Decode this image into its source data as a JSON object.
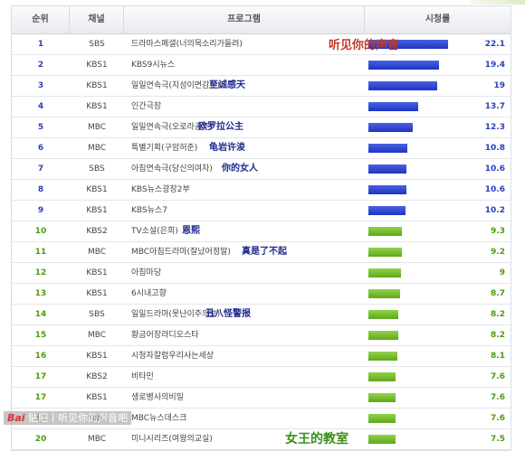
{
  "header": {
    "rank": "순위",
    "channel": "채널",
    "program": "프로그램",
    "rating": "시청률"
  },
  "chart_data": {
    "type": "bar",
    "orientation": "horizontal",
    "xlim": [
      0,
      25
    ],
    "rows": [
      {
        "rank": "1",
        "channel": "SBS",
        "program": "드라마스페셜(너의목소리가들려)",
        "value": 22.1,
        "color": "blue",
        "note": "听见你的声音",
        "note_style": "red"
      },
      {
        "rank": "2",
        "channel": "KBS1",
        "program": "KBS9시뉴스",
        "value": 19.4,
        "color": "blue",
        "note": ""
      },
      {
        "rank": "3",
        "channel": "KBS1",
        "program": "일일연속극(지성이면감천)",
        "value": 19,
        "color": "blue",
        "note": "至诚感天",
        "note_style": "blue",
        "note_left": 218
      },
      {
        "rank": "4",
        "channel": "KBS1",
        "program": "인간극장",
        "value": 13.7,
        "color": "blue",
        "note": ""
      },
      {
        "rank": "5",
        "channel": "MBC",
        "program": "일일연속극(오로라공주)",
        "value": 12.3,
        "color": "blue",
        "note": "欧罗拉公主",
        "note_style": "blue",
        "note_left": 206
      },
      {
        "rank": "6",
        "channel": "MBC",
        "program": "특별기획(구암허준)",
        "value": 10.8,
        "color": "blue",
        "note": "龟岩许浚",
        "note_style": "blue",
        "note_left": 218
      },
      {
        "rank": "7",
        "channel": "SBS",
        "program": "아침연속극(당신의여자)",
        "value": 10.6,
        "color": "blue",
        "note": "你的女人",
        "note_style": "blue",
        "note_left": 232
      },
      {
        "rank": "8",
        "channel": "KBS1",
        "program": "KBS뉴스광장2부",
        "value": 10.6,
        "color": "blue",
        "note": ""
      },
      {
        "rank": "9",
        "channel": "KBS1",
        "program": "KBS뉴스7",
        "value": 10.2,
        "color": "blue",
        "note": ""
      },
      {
        "rank": "10",
        "channel": "KBS2",
        "program": "TV소설(은희)",
        "value": 9.3,
        "color": "green",
        "note": "恩熙",
        "note_style": "blue",
        "note_left": 188
      },
      {
        "rank": "11",
        "channel": "MBC",
        "program": "MBC아침드라마(잘났어정말)",
        "value": 9.2,
        "color": "green",
        "note": "真是了不起",
        "note_style": "blue",
        "note_left": 254
      },
      {
        "rank": "12",
        "channel": "KBS1",
        "program": "아침마당",
        "value": 9,
        "color": "green",
        "note": ""
      },
      {
        "rank": "13",
        "channel": "KBS1",
        "program": "6시내고향",
        "value": 8.7,
        "color": "green",
        "note": ""
      },
      {
        "rank": "14",
        "channel": "SBS",
        "program": "일일드라마(못난이주의보)",
        "value": 8.2,
        "color": "green",
        "note": "丑八怪警报",
        "note_style": "blue",
        "note_left": 214
      },
      {
        "rank": "15",
        "channel": "MBC",
        "program": "황금어장라디오스타",
        "value": 8.2,
        "color": "green",
        "note": ""
      },
      {
        "rank": "16",
        "channel": "KBS1",
        "program": "시청자칼럼우리사는세상",
        "value": 8.1,
        "color": "green",
        "note": ""
      },
      {
        "rank": "17",
        "channel": "KBS2",
        "program": "비타민",
        "value": 7.6,
        "color": "green",
        "note": ""
      },
      {
        "rank": "17",
        "channel": "KBS1",
        "program": "생로병사의비밀",
        "value": 7.6,
        "color": "green",
        "note": ""
      },
      {
        "rank": "17",
        "channel": "MBC",
        "program": "MBC뉴스데스크",
        "value": 7.6,
        "color": "green",
        "note": ""
      },
      {
        "rank": "20",
        "channel": "MBC",
        "program": "미니시리즈(여왕의교실)",
        "value": 7.5,
        "color": "green",
        "note": "女王的教室",
        "note_style": "green"
      }
    ]
  },
  "watermark": {
    "brand": "Bai",
    "text": "贴吧丨听见你的声音吧"
  },
  "colors": {
    "blue": "#2a3fc0",
    "green": "#5fa81c"
  }
}
